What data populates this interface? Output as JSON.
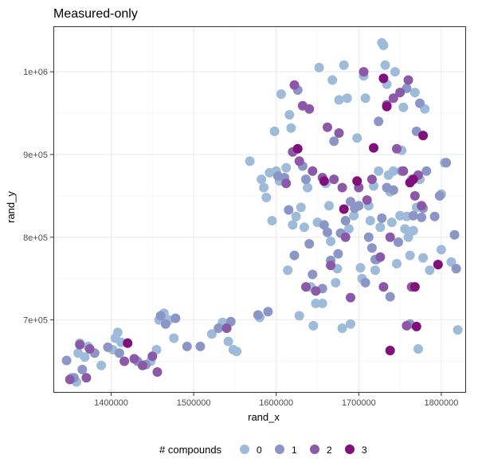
{
  "chart_data": {
    "type": "scatter",
    "title": "Measured-only",
    "xlabel": "rand_x",
    "ylabel": "rand_y",
    "xlim": [
      1330000,
      1830000
    ],
    "ylim": [
      612000,
      1055000
    ],
    "x_ticks": [
      1400000,
      1500000,
      1600000,
      1700000,
      1800000
    ],
    "x_tick_labels": [
      "1400000",
      "1500000",
      "1600000",
      "1700000",
      "1800000"
    ],
    "y_ticks": [
      700000,
      800000,
      900000,
      1000000
    ],
    "y_tick_labels": [
      "7e+05",
      "8e+05",
      "9e+05",
      "1e+06"
    ],
    "grid": true,
    "legend": {
      "title": "# compounds",
      "position": "bottom",
      "entries": [
        {
          "label": "0",
          "color": "#9ebcda"
        },
        {
          "label": "1",
          "color": "#8c96c6"
        },
        {
          "label": "2",
          "color": "#8c59a8"
        },
        {
          "label": "3",
          "color": "#810f7c"
        }
      ]
    },
    "series": [
      {
        "name": "0",
        "color": "#9ebcda",
        "points": [
          [
            1352000,
            630000
          ],
          [
            1358000,
            625000
          ],
          [
            1362000,
            672000
          ],
          [
            1360000,
            660000
          ],
          [
            1368000,
            655000
          ],
          [
            1372000,
            668000
          ],
          [
            1388000,
            645000
          ],
          [
            1402000,
            664000
          ],
          [
            1405000,
            678000
          ],
          [
            1408000,
            685000
          ],
          [
            1412000,
            673000
          ],
          [
            1448000,
            650000
          ],
          [
            1455000,
            664000
          ],
          [
            1458000,
            700000
          ],
          [
            1464000,
            708000
          ],
          [
            1470000,
            700000
          ],
          [
            1476000,
            678000
          ],
          [
            1522000,
            683000
          ],
          [
            1535000,
            697000
          ],
          [
            1542000,
            674000
          ],
          [
            1548000,
            664000
          ],
          [
            1552000,
            662000
          ],
          [
            1568000,
            892000
          ],
          [
            1580000,
            703000
          ],
          [
            1582000,
            870000
          ],
          [
            1585000,
            860000
          ],
          [
            1588000,
            848000
          ],
          [
            1592000,
            878000
          ],
          [
            1595000,
            820000
          ],
          [
            1598000,
            928000
          ],
          [
            1600000,
            880000
          ],
          [
            1604000,
            868000
          ],
          [
            1606000,
            973000
          ],
          [
            1612000,
            884000
          ],
          [
            1614000,
            760000
          ],
          [
            1616000,
            948000
          ],
          [
            1618000,
            932000
          ],
          [
            1620000,
            815000
          ],
          [
            1624000,
            825000
          ],
          [
            1628000,
            705000
          ],
          [
            1630000,
            836000
          ],
          [
            1634000,
            812000
          ],
          [
            1638000,
            860000
          ],
          [
            1642000,
            740000
          ],
          [
            1645000,
            693000
          ],
          [
            1648000,
            720000
          ],
          [
            1650000,
            818000
          ],
          [
            1652000,
            1005000
          ],
          [
            1656000,
            720000
          ],
          [
            1660000,
            865000
          ],
          [
            1664000,
            838000
          ],
          [
            1666000,
            795000
          ],
          [
            1668000,
            990000
          ],
          [
            1672000,
            745000
          ],
          [
            1674000,
            762000
          ],
          [
            1676000,
            966000
          ],
          [
            1680000,
            690000
          ],
          [
            1682000,
            1008000
          ],
          [
            1686000,
            968000
          ],
          [
            1688000,
            810000
          ],
          [
            1690000,
            695000
          ],
          [
            1694000,
            826000
          ],
          [
            1698000,
            920000
          ],
          [
            1702000,
            763000
          ],
          [
            1704000,
            750000
          ],
          [
            1706000,
            995000
          ],
          [
            1708000,
            968000
          ],
          [
            1712000,
            838000
          ],
          [
            1714000,
            820000
          ],
          [
            1718000,
            862000
          ],
          [
            1720000,
            760000
          ],
          [
            1722000,
            773000
          ],
          [
            1724000,
            880000
          ],
          [
            1726000,
            812000
          ],
          [
            1728000,
            1035000
          ],
          [
            1730000,
            1032000
          ],
          [
            1732000,
            1008000
          ],
          [
            1734000,
            985000
          ],
          [
            1736000,
            875000
          ],
          [
            1738000,
            855000
          ],
          [
            1740000,
            818000
          ],
          [
            1742000,
            880000
          ],
          [
            1744000,
            1000000
          ],
          [
            1746000,
            768000
          ],
          [
            1750000,
            826000
          ],
          [
            1752000,
            905000
          ],
          [
            1754000,
            957000
          ],
          [
            1756000,
            810000
          ],
          [
            1758000,
            825000
          ],
          [
            1760000,
            800000
          ],
          [
            1762000,
            778000
          ],
          [
            1764000,
            870000
          ],
          [
            1766000,
            808000
          ],
          [
            1768000,
            975000
          ],
          [
            1770000,
            836000
          ],
          [
            1772000,
            665000
          ],
          [
            1774000,
            870000
          ],
          [
            1776000,
            838000
          ],
          [
            1778000,
            775000
          ],
          [
            1780000,
            955000
          ],
          [
            1786000,
            760000
          ],
          [
            1800000,
            852000
          ],
          [
            1800000,
            785000
          ],
          [
            1804000,
            890000
          ],
          [
            1812000,
            770000
          ],
          [
            1820000,
            688000
          ]
        ]
      },
      {
        "name": "1",
        "color": "#8c96c6",
        "points": [
          [
            1346000,
            651000
          ],
          [
            1355000,
            630000
          ],
          [
            1365000,
            640000
          ],
          [
            1380000,
            660000
          ],
          [
            1396000,
            667000
          ],
          [
            1410000,
            660000
          ],
          [
            1432000,
            650000
          ],
          [
            1442000,
            646000
          ],
          [
            1460000,
            705000
          ],
          [
            1466000,
            695000
          ],
          [
            1478000,
            702000
          ],
          [
            1492000,
            668000
          ],
          [
            1508000,
            668000
          ],
          [
            1530000,
            690000
          ],
          [
            1545000,
            698000
          ],
          [
            1578000,
            706000
          ],
          [
            1590000,
            710000
          ],
          [
            1602000,
            874000
          ],
          [
            1610000,
            872000
          ],
          [
            1615000,
            833000
          ],
          [
            1622000,
            778000
          ],
          [
            1626000,
            978000
          ],
          [
            1632000,
            886000
          ],
          [
            1636000,
            870000
          ],
          [
            1640000,
            792000
          ],
          [
            1644000,
            755000
          ],
          [
            1656000,
            738000
          ],
          [
            1658000,
            815000
          ],
          [
            1662000,
            806000
          ],
          [
            1666000,
            772000
          ],
          [
            1670000,
            916000
          ],
          [
            1675000,
            780000
          ],
          [
            1678000,
            805000
          ],
          [
            1684000,
            820000
          ],
          [
            1690000,
            843000
          ],
          [
            1695000,
            835000
          ],
          [
            1700000,
            838000
          ],
          [
            1708000,
            745000
          ],
          [
            1712000,
            800000
          ],
          [
            1716000,
            787000
          ],
          [
            1720000,
            773000
          ],
          [
            1724000,
            940000
          ],
          [
            1728000,
            823000
          ],
          [
            1734000,
            860000
          ],
          [
            1738000,
            728000
          ],
          [
            1742000,
            857000
          ],
          [
            1748000,
            794000
          ],
          [
            1752000,
            880000
          ],
          [
            1758000,
            980000
          ],
          [
            1762000,
            695000
          ],
          [
            1766000,
            826000
          ],
          [
            1770000,
            928000
          ],
          [
            1774000,
            962000
          ],
          [
            1776000,
            824000
          ],
          [
            1778000,
            835000
          ],
          [
            1782000,
            880000
          ],
          [
            1792000,
            825000
          ],
          [
            1798000,
            850000
          ],
          [
            1806000,
            890000
          ],
          [
            1816000,
            803000
          ],
          [
            1818000,
            762000
          ]
        ]
      },
      {
        "name": "2",
        "color": "#8c59a8",
        "points": [
          [
            1350000,
            628000
          ],
          [
            1362000,
            670000
          ],
          [
            1370000,
            630000
          ],
          [
            1374000,
            665000
          ],
          [
            1416000,
            650000
          ],
          [
            1428000,
            653000
          ],
          [
            1438000,
            645000
          ],
          [
            1450000,
            656000
          ],
          [
            1456000,
            637000
          ],
          [
            1540000,
            690000
          ],
          [
            1612000,
            865000
          ],
          [
            1620000,
            903000
          ],
          [
            1622000,
            984000
          ],
          [
            1628000,
            892000
          ],
          [
            1632000,
            959000
          ],
          [
            1636000,
            740000
          ],
          [
            1640000,
            955000
          ],
          [
            1644000,
            880000
          ],
          [
            1648000,
            735000
          ],
          [
            1656000,
            872000
          ],
          [
            1662000,
            933000
          ],
          [
            1666000,
            766000
          ],
          [
            1670000,
            870000
          ],
          [
            1676000,
            926000
          ],
          [
            1680000,
            860000
          ],
          [
            1684000,
            800000
          ],
          [
            1690000,
            727000
          ],
          [
            1700000,
            860000
          ],
          [
            1706000,
            1000000
          ],
          [
            1710000,
            845000
          ],
          [
            1716000,
            870000
          ],
          [
            1726000,
            776000
          ],
          [
            1730000,
            740000
          ],
          [
            1734000,
            960000
          ],
          [
            1738000,
            800000
          ],
          [
            1742000,
            968000
          ],
          [
            1746000,
            907000
          ],
          [
            1750000,
            975000
          ],
          [
            1754000,
            880000
          ],
          [
            1758000,
            693000
          ],
          [
            1760000,
            990000
          ],
          [
            1764000,
            740000
          ],
          [
            1768000,
            850000
          ],
          [
            1772000,
            875000
          ],
          [
            1776000,
            838000
          ]
        ]
      },
      {
        "name": "3",
        "color": "#810f7c",
        "points": [
          [
            1420000,
            672000
          ],
          [
            1626000,
            907000
          ],
          [
            1658000,
            868000
          ],
          [
            1682000,
            834000
          ],
          [
            1698000,
            868000
          ],
          [
            1718000,
            908000
          ],
          [
            1730000,
            992000
          ],
          [
            1734000,
            958000
          ],
          [
            1738000,
            663000
          ],
          [
            1762000,
            866000
          ],
          [
            1766000,
            870000
          ],
          [
            1768000,
            740000
          ],
          [
            1770000,
            692000
          ],
          [
            1778000,
            923000
          ],
          [
            1796000,
            767000
          ]
        ]
      }
    ]
  }
}
